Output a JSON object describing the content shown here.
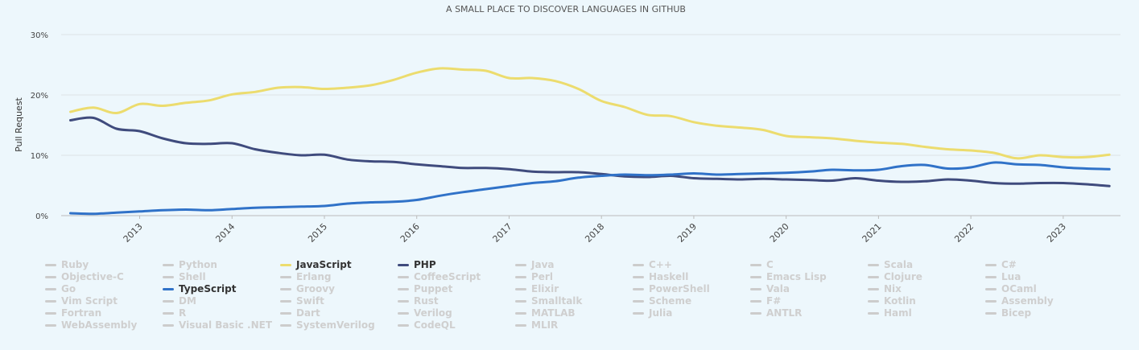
{
  "chart_data": {
    "type": "line",
    "title": "A SMALL PLACE TO DISCOVER LANGUAGES IN GITHUB",
    "ylabel": "Pull Request",
    "xlabel": "",
    "ylim": [
      0,
      30
    ],
    "yticks": [
      "0%",
      "10%",
      "20%",
      "30%"
    ],
    "xticks": [
      "2013",
      "2014",
      "2015",
      "2016",
      "2017",
      "2018",
      "2019",
      "2020",
      "2021",
      "2022",
      "2023"
    ],
    "grid": true,
    "legend_placement": "bottom",
    "series": [
      {
        "name": "JavaScript",
        "color": "#ecdc6e",
        "points": [
          [
            2012.25,
            17.2
          ],
          [
            2012.5,
            17.9
          ],
          [
            2012.75,
            17.0
          ],
          [
            2013.0,
            18.5
          ],
          [
            2013.25,
            18.2
          ],
          [
            2013.5,
            18.7
          ],
          [
            2013.75,
            19.1
          ],
          [
            2014.0,
            20.1
          ],
          [
            2014.25,
            20.5
          ],
          [
            2014.5,
            21.2
          ],
          [
            2014.75,
            21.3
          ],
          [
            2015.0,
            21.0
          ],
          [
            2015.25,
            21.2
          ],
          [
            2015.5,
            21.6
          ],
          [
            2015.75,
            22.5
          ],
          [
            2016.0,
            23.7
          ],
          [
            2016.25,
            24.4
          ],
          [
            2016.5,
            24.2
          ],
          [
            2016.75,
            24.0
          ],
          [
            2017.0,
            22.8
          ],
          [
            2017.25,
            22.8
          ],
          [
            2017.5,
            22.3
          ],
          [
            2017.75,
            21.0
          ],
          [
            2018.0,
            19.0
          ],
          [
            2018.25,
            18.0
          ],
          [
            2018.5,
            16.7
          ],
          [
            2018.75,
            16.5
          ],
          [
            2019.0,
            15.5
          ],
          [
            2019.25,
            14.9
          ],
          [
            2019.5,
            14.6
          ],
          [
            2019.75,
            14.2
          ],
          [
            2020.0,
            13.2
          ],
          [
            2020.25,
            13.0
          ],
          [
            2020.5,
            12.8
          ],
          [
            2020.75,
            12.4
          ],
          [
            2021.0,
            12.1
          ],
          [
            2021.25,
            11.9
          ],
          [
            2021.5,
            11.4
          ],
          [
            2021.75,
            11.0
          ],
          [
            2022.0,
            10.8
          ],
          [
            2022.25,
            10.4
          ],
          [
            2022.5,
            9.5
          ],
          [
            2022.75,
            10.0
          ],
          [
            2023.0,
            9.7
          ],
          [
            2023.25,
            9.7
          ],
          [
            2023.5,
            10.1
          ]
        ]
      },
      {
        "name": "PHP",
        "color": "#3f4b7d",
        "points": [
          [
            2012.25,
            15.8
          ],
          [
            2012.5,
            16.2
          ],
          [
            2012.75,
            14.4
          ],
          [
            2013.0,
            14.0
          ],
          [
            2013.25,
            12.8
          ],
          [
            2013.5,
            12.0
          ],
          [
            2013.75,
            11.9
          ],
          [
            2014.0,
            12.0
          ],
          [
            2014.25,
            11.0
          ],
          [
            2014.5,
            10.4
          ],
          [
            2014.75,
            10.0
          ],
          [
            2015.0,
            10.1
          ],
          [
            2015.25,
            9.3
          ],
          [
            2015.5,
            9.0
          ],
          [
            2015.75,
            8.9
          ],
          [
            2016.0,
            8.5
          ],
          [
            2016.25,
            8.2
          ],
          [
            2016.5,
            7.9
          ],
          [
            2016.75,
            7.9
          ],
          [
            2017.0,
            7.7
          ],
          [
            2017.25,
            7.3
          ],
          [
            2017.5,
            7.2
          ],
          [
            2017.75,
            7.2
          ],
          [
            2018.0,
            6.9
          ],
          [
            2018.25,
            6.5
          ],
          [
            2018.5,
            6.4
          ],
          [
            2018.75,
            6.6
          ],
          [
            2019.0,
            6.2
          ],
          [
            2019.25,
            6.1
          ],
          [
            2019.5,
            6.0
          ],
          [
            2019.75,
            6.1
          ],
          [
            2020.0,
            6.0
          ],
          [
            2020.25,
            5.9
          ],
          [
            2020.5,
            5.8
          ],
          [
            2020.75,
            6.2
          ],
          [
            2021.0,
            5.8
          ],
          [
            2021.25,
            5.6
          ],
          [
            2021.5,
            5.7
          ],
          [
            2021.75,
            6.0
          ],
          [
            2022.0,
            5.8
          ],
          [
            2022.25,
            5.4
          ],
          [
            2022.5,
            5.3
          ],
          [
            2022.75,
            5.4
          ],
          [
            2023.0,
            5.4
          ],
          [
            2023.25,
            5.2
          ],
          [
            2023.5,
            4.9
          ]
        ]
      },
      {
        "name": "TypeScript",
        "color": "#3072c8",
        "points": [
          [
            2012.25,
            0.4
          ],
          [
            2012.5,
            0.3
          ],
          [
            2012.75,
            0.5
          ],
          [
            2013.0,
            0.7
          ],
          [
            2013.25,
            0.9
          ],
          [
            2013.5,
            1.0
          ],
          [
            2013.75,
            0.9
          ],
          [
            2014.0,
            1.1
          ],
          [
            2014.25,
            1.3
          ],
          [
            2014.5,
            1.4
          ],
          [
            2014.75,
            1.5
          ],
          [
            2015.0,
            1.6
          ],
          [
            2015.25,
            2.0
          ],
          [
            2015.5,
            2.2
          ],
          [
            2015.75,
            2.3
          ],
          [
            2016.0,
            2.6
          ],
          [
            2016.25,
            3.3
          ],
          [
            2016.5,
            3.9
          ],
          [
            2016.75,
            4.4
          ],
          [
            2017.0,
            4.9
          ],
          [
            2017.25,
            5.4
          ],
          [
            2017.5,
            5.7
          ],
          [
            2017.75,
            6.3
          ],
          [
            2018.0,
            6.6
          ],
          [
            2018.25,
            6.8
          ],
          [
            2018.5,
            6.7
          ],
          [
            2018.75,
            6.8
          ],
          [
            2019.0,
            7.0
          ],
          [
            2019.25,
            6.8
          ],
          [
            2019.5,
            6.9
          ],
          [
            2019.75,
            7.0
          ],
          [
            2020.0,
            7.1
          ],
          [
            2020.25,
            7.3
          ],
          [
            2020.5,
            7.6
          ],
          [
            2020.75,
            7.5
          ],
          [
            2021.0,
            7.6
          ],
          [
            2021.25,
            8.2
          ],
          [
            2021.5,
            8.4
          ],
          [
            2021.75,
            7.8
          ],
          [
            2022.0,
            8.0
          ],
          [
            2022.25,
            8.8
          ],
          [
            2022.5,
            8.5
          ],
          [
            2022.75,
            8.4
          ],
          [
            2023.0,
            8.0
          ],
          [
            2023.25,
            7.8
          ],
          [
            2023.5,
            7.7
          ]
        ]
      }
    ]
  },
  "legend": [
    {
      "label": "Ruby",
      "active": false
    },
    {
      "label": "Python",
      "active": false
    },
    {
      "label": "JavaScript",
      "active": true,
      "color": "#ecdc6e"
    },
    {
      "label": "PHP",
      "active": true,
      "color": "#3f4b7d"
    },
    {
      "label": "Java",
      "active": false
    },
    {
      "label": "C++",
      "active": false
    },
    {
      "label": "C",
      "active": false
    },
    {
      "label": "Scala",
      "active": false
    },
    {
      "label": "C#",
      "active": false
    },
    {
      "label": "Objective-C",
      "active": false
    },
    {
      "label": "Shell",
      "active": false
    },
    {
      "label": "Erlang",
      "active": false
    },
    {
      "label": "CoffeeScript",
      "active": false
    },
    {
      "label": "Perl",
      "active": false
    },
    {
      "label": "Haskell",
      "active": false
    },
    {
      "label": "Emacs Lisp",
      "active": false
    },
    {
      "label": "Clojure",
      "active": false
    },
    {
      "label": "Lua",
      "active": false
    },
    {
      "label": "Go",
      "active": false
    },
    {
      "label": "TypeScript",
      "active": true,
      "color": "#3072c8"
    },
    {
      "label": "Groovy",
      "active": false
    },
    {
      "label": "Puppet",
      "active": false
    },
    {
      "label": "Elixir",
      "active": false
    },
    {
      "label": "PowerShell",
      "active": false
    },
    {
      "label": "Vala",
      "active": false
    },
    {
      "label": "Nix",
      "active": false
    },
    {
      "label": "OCaml",
      "active": false
    },
    {
      "label": "Vim Script",
      "active": false
    },
    {
      "label": "DM",
      "active": false
    },
    {
      "label": "Swift",
      "active": false
    },
    {
      "label": "Rust",
      "active": false
    },
    {
      "label": "Smalltalk",
      "active": false
    },
    {
      "label": "Scheme",
      "active": false
    },
    {
      "label": "F#",
      "active": false
    },
    {
      "label": "Kotlin",
      "active": false
    },
    {
      "label": "Assembly",
      "active": false
    },
    {
      "label": "Fortran",
      "active": false
    },
    {
      "label": "R",
      "active": false
    },
    {
      "label": "Dart",
      "active": false
    },
    {
      "label": "Verilog",
      "active": false
    },
    {
      "label": "MATLAB",
      "active": false
    },
    {
      "label": "Julia",
      "active": false
    },
    {
      "label": "ANTLR",
      "active": false
    },
    {
      "label": "Haml",
      "active": false
    },
    {
      "label": "Bicep",
      "active": false
    },
    {
      "label": "WebAssembly",
      "active": false
    },
    {
      "label": "Visual Basic .NET",
      "active": false
    },
    {
      "label": "SystemVerilog",
      "active": false
    },
    {
      "label": "CodeQL",
      "active": false
    },
    {
      "label": "MLIR",
      "active": false
    }
  ]
}
